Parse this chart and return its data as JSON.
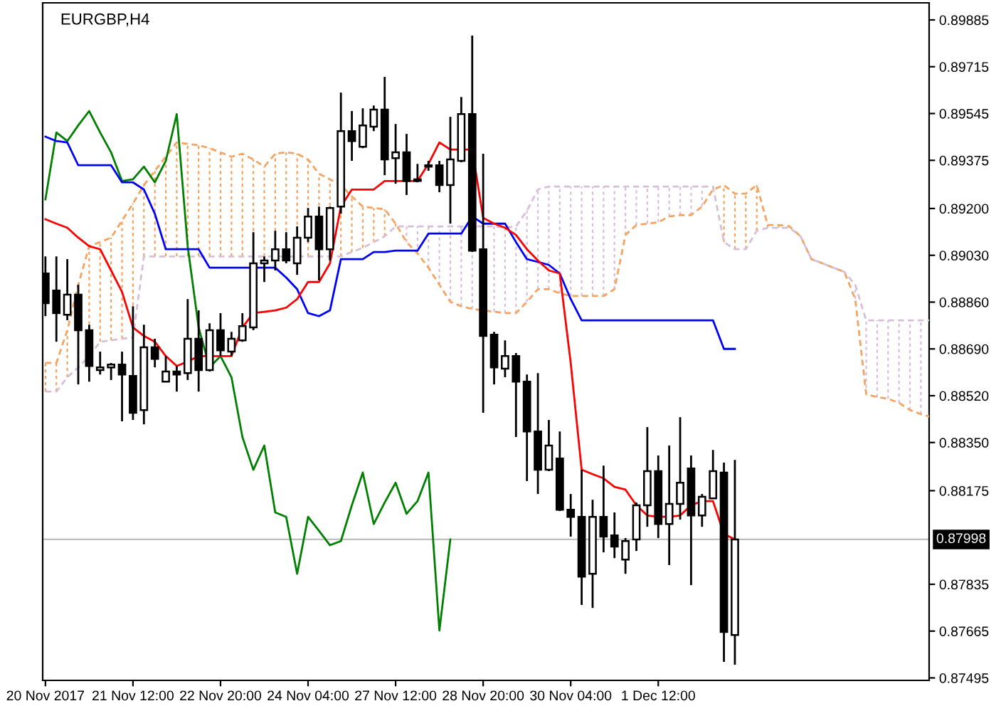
{
  "chart_data": {
    "type": "candlestick",
    "title": "EURGBP,H4",
    "categories": [
      "20 Nov 2017",
      null,
      null,
      null,
      null,
      null,
      null,
      null,
      "21 Nov 12:00",
      null,
      null,
      null,
      null,
      null,
      null,
      null,
      "22 Nov 20:00",
      null,
      null,
      null,
      null,
      null,
      null,
      null,
      "24 Nov 04:00",
      null,
      null,
      null,
      null,
      null,
      null,
      null,
      "27 Nov 12:00",
      null,
      null,
      null,
      null,
      null,
      null,
      null,
      "28 Nov 20:00",
      null,
      null,
      null,
      null,
      null,
      null,
      null,
      "30 Nov 04:00",
      null,
      null,
      null,
      null,
      null,
      null,
      null,
      "1 Dec 12:00",
      null,
      null,
      null,
      null,
      null,
      null,
      null,
      null,
      null,
      null,
      null,
      null,
      null,
      null,
      null,
      null,
      null,
      null,
      null,
      null,
      null,
      null,
      null,
      null,
      null
    ],
    "ohlc": [
      [
        0.88964,
        0.89026,
        0.88809,
        0.88856
      ],
      [
        0.88902,
        0.89026,
        0.88716,
        0.8882
      ],
      [
        0.88814,
        0.89016,
        0.88794,
        0.88887
      ],
      [
        0.88887,
        0.88923,
        0.88561,
        0.88758
      ],
      [
        0.88758,
        0.88778,
        0.88571,
        0.88628
      ],
      [
        0.88613,
        0.8868,
        0.88597,
        0.88623
      ],
      [
        0.88623,
        0.88639,
        0.88577,
        0.88633
      ],
      [
        0.88633,
        0.8868,
        0.88427,
        0.88597
      ],
      [
        0.88592,
        0.88845,
        0.88432,
        0.88458
      ],
      [
        0.88468,
        0.88778,
        0.88416,
        0.88696
      ],
      [
        0.88696,
        0.88727,
        0.88623,
        0.88654
      ],
      [
        0.88571,
        0.88664,
        0.88571,
        0.88608
      ],
      [
        0.88608,
        0.88628,
        0.88535,
        0.88597
      ],
      [
        0.88602,
        0.88871,
        0.88577,
        0.88727
      ],
      [
        0.88727,
        0.8883,
        0.88535,
        0.88613
      ],
      [
        0.88613,
        0.88783,
        0.88608,
        0.88758
      ],
      [
        0.88758,
        0.8882,
        0.88664,
        0.88685
      ],
      [
        0.8868,
        0.88752,
        0.88664,
        0.88727
      ],
      [
        0.88721,
        0.8882,
        0.88716,
        0.88773
      ],
      [
        0.88768,
        0.89114,
        0.88758,
        0.89001
      ],
      [
        0.89001,
        0.89026,
        0.88933,
        0.89011
      ],
      [
        0.89011,
        0.89119,
        0.88975,
        0.89052
      ],
      [
        0.89052,
        0.89114,
        0.89001,
        0.89011
      ],
      [
        0.89001,
        0.89135,
        0.88959,
        0.89094
      ],
      [
        0.89094,
        0.89202,
        0.89078,
        0.89171
      ],
      [
        0.89171,
        0.89207,
        0.88939,
        0.89052
      ],
      [
        0.89052,
        0.89207,
        0.89011,
        0.89202
      ],
      [
        0.89207,
        0.89621,
        0.89181,
        0.89481
      ],
      [
        0.89481,
        0.89554,
        0.89373,
        0.89445
      ],
      [
        0.89424,
        0.89564,
        0.89419,
        0.89502
      ],
      [
        0.89497,
        0.89574,
        0.89481,
        0.89559
      ],
      [
        0.89559,
        0.89678,
        0.89321,
        0.89378
      ],
      [
        0.89383,
        0.89507,
        0.8929,
        0.89404
      ],
      [
        0.89404,
        0.89471,
        0.89249,
        0.893
      ],
      [
        0.89306,
        0.89362,
        0.89295,
        0.893
      ],
      [
        0.89357,
        0.89373,
        0.89337,
        0.89352
      ],
      [
        0.89357,
        0.89373,
        0.89259,
        0.89285
      ],
      [
        0.89285,
        0.89533,
        0.89145,
        0.89378
      ],
      [
        0.89373,
        0.89605,
        0.89368,
        0.89543
      ],
      [
        0.89543,
        0.89828,
        0.89042,
        0.89047
      ],
      [
        0.89052,
        0.89399,
        0.88458,
        0.88737
      ],
      [
        0.88742,
        0.88752,
        0.88561,
        0.88623
      ],
      [
        0.88618,
        0.88721,
        0.88587,
        0.88664
      ],
      [
        0.88664,
        0.88675,
        0.8837,
        0.88571
      ],
      [
        0.88571,
        0.88597,
        0.8821,
        0.8839
      ],
      [
        0.8839,
        0.88602,
        0.88163,
        0.88251
      ],
      [
        0.88251,
        0.88432,
        0.88246,
        0.88339
      ],
      [
        0.88292,
        0.8839,
        0.88101,
        0.88106
      ],
      [
        0.88106,
        0.88163,
        0.88008,
        0.8808
      ],
      [
        0.8808,
        0.88251,
        0.8776,
        0.87863
      ],
      [
        0.87873,
        0.88142,
        0.87749,
        0.8808
      ],
      [
        0.8808,
        0.88266,
        0.87951,
        0.88008
      ],
      [
        0.88013,
        0.88096,
        0.8793,
        0.87972
      ],
      [
        0.87925,
        0.88003,
        0.87873,
        0.87992
      ],
      [
        0.87998,
        0.88132,
        0.87956,
        0.88122
      ],
      [
        0.88122,
        0.88406,
        0.88044,
        0.88246
      ],
      [
        0.88246,
        0.88303,
        0.88003,
        0.88054
      ],
      [
        0.88054,
        0.88339,
        0.87905,
        0.88127
      ],
      [
        0.88127,
        0.88442,
        0.8807,
        0.88204
      ],
      [
        0.88256,
        0.88303,
        0.87832,
        0.88085
      ],
      [
        0.88085,
        0.88163,
        0.88044,
        0.88153
      ],
      [
        0.88147,
        0.88323,
        0.88147,
        0.88246
      ],
      [
        0.88241,
        0.88277,
        0.87553,
        0.87662
      ],
      [
        0.87651,
        0.88287,
        0.87543,
        0.87998
      ],
      null,
      null,
      null,
      null,
      null,
      null,
      null,
      null,
      null,
      null,
      null,
      null,
      null,
      null,
      null,
      null,
      null,
      null
    ],
    "series": [
      {
        "type": "line",
        "color": "#f4a460",
        "line_style": "dashed",
        "values": [
          0.88639,
          0.88639,
          0.88758,
          0.88923,
          0.89063,
          0.89078,
          0.89094,
          0.89156,
          0.89218,
          0.89285,
          0.89337,
          0.89388,
          0.8944,
          0.89435,
          0.8943,
          0.89419,
          0.89404,
          0.89388,
          0.89399,
          0.89378,
          0.89352,
          0.89399,
          0.89404,
          0.89399,
          0.89378,
          0.89326,
          0.89306,
          0.89285,
          0.89244,
          0.89207,
          0.89202,
          0.89197,
          0.89145,
          0.89078,
          0.89037,
          0.88985,
          0.88923,
          0.88861,
          0.88845,
          0.88835,
          0.8883,
          0.88825,
          0.8882,
          0.8882,
          0.88861,
          0.88907,
          0.88907,
          0.88892,
          0.88882,
          0.88882,
          0.88882,
          0.88882,
          0.88907,
          0.89104,
          0.8914,
          0.89145,
          0.8915,
          0.89171,
          0.89176,
          0.89176,
          0.89207,
          0.89269,
          0.89285,
          0.89254,
          0.89254,
          0.89285,
          0.8914,
          0.8914,
          0.89135,
          0.89099,
          0.89016,
          0.89001,
          0.88985,
          0.8897,
          0.88871,
          0.88525,
          0.88515,
          0.88509,
          0.88494,
          0.88468,
          0.88453,
          0.88442
        ]
      },
      {
        "type": "line",
        "color": "#d8bfd8",
        "line_style": "dashed",
        "values": [
          0.88535,
          0.88535,
          0.88587,
          0.88623,
          0.88664,
          0.88716,
          0.88721,
          0.88727,
          0.88732,
          0.89026,
          0.89026,
          0.89026,
          0.89026,
          0.89026,
          0.89026,
          0.89026,
          0.89026,
          0.89026,
          0.89026,
          0.89026,
          0.89026,
          0.89026,
          0.89026,
          0.89026,
          0.89026,
          0.89026,
          0.89026,
          0.89026,
          0.89042,
          0.89057,
          0.89078,
          0.89099,
          0.89135,
          0.89135,
          0.89135,
          0.89135,
          0.89135,
          0.89135,
          0.89135,
          0.89135,
          0.89135,
          0.89135,
          0.8913,
          0.89135,
          0.89192,
          0.89269,
          0.8928,
          0.8928,
          0.8928,
          0.8928,
          0.8928,
          0.8928,
          0.8928,
          0.8928,
          0.8928,
          0.8928,
          0.8928,
          0.8928,
          0.8928,
          0.8928,
          0.8928,
          0.8928,
          0.89078,
          0.89052,
          0.89052,
          0.89119,
          0.8913,
          0.8913,
          0.8913,
          0.89099,
          0.89016,
          0.89001,
          0.88985,
          0.8897,
          0.88923,
          0.88794,
          0.88794,
          0.88794,
          0.88794,
          0.88794,
          0.88794,
          0.88794
        ]
      },
      {
        "type": "line",
        "color": "#008000",
        "line_style": "solid",
        "values": [
          0.89233,
          0.89476,
          0.89445,
          0.89502,
          0.89554,
          0.89476,
          0.89404,
          0.893,
          0.89306,
          0.89352,
          0.89295,
          0.89373,
          0.89543,
          0.89063,
          0.88768,
          0.88623,
          0.88664,
          0.88587,
          0.8837,
          0.88251,
          0.88339,
          0.88096,
          0.8808,
          0.87873,
          0.8808,
          0.88029,
          0.87977,
          0.87992,
          0.88122,
          0.88241,
          0.88054,
          0.88132,
          0.88204,
          0.88091,
          0.88137,
          0.88241,
          0.87667,
          0.87998,
          null,
          null,
          null,
          null,
          null,
          null,
          null,
          null,
          null,
          null,
          null,
          null,
          null,
          null,
          null,
          null,
          null,
          null,
          null,
          null,
          null,
          null,
          null,
          null,
          null,
          null,
          null,
          null,
          null,
          null,
          null,
          null,
          null,
          null,
          null,
          null,
          null,
          null,
          null,
          null,
          null,
          null,
          null,
          null
        ]
      },
      {
        "type": "line",
        "color": "#0000ff",
        "line_style": "solid",
        "values": [
          0.89461,
          0.89445,
          0.8944,
          0.89357,
          0.89357,
          0.89357,
          0.89357,
          0.89295,
          0.89295,
          0.89269,
          0.89181,
          0.89052,
          0.89052,
          0.89052,
          0.89052,
          0.88985,
          0.88985,
          0.88985,
          0.88985,
          0.88985,
          0.88985,
          0.88985,
          0.88949,
          0.88907,
          0.8882,
          0.88809,
          0.8883,
          0.89016,
          0.89016,
          0.89016,
          0.89042,
          0.89042,
          0.89047,
          0.89047,
          0.89047,
          0.89109,
          0.89109,
          0.89109,
          0.89109,
          0.89171,
          0.89145,
          0.89145,
          0.89145,
          0.89078,
          0.89016,
          0.89006,
          0.88995,
          0.88964,
          0.88871,
          0.88794,
          0.88794,
          0.88794,
          0.88794,
          0.88794,
          0.88794,
          0.88794,
          0.88794,
          0.88794,
          0.88794,
          0.88794,
          0.88794,
          0.88794,
          0.8869,
          0.8869,
          null,
          null,
          null,
          null,
          null,
          null,
          null,
          null,
          null,
          null,
          null,
          null,
          null,
          null,
          null,
          null,
          null,
          null
        ]
      },
      {
        "type": "line",
        "color": "#ff0000",
        "line_style": "solid",
        "values": [
          0.89161,
          0.89145,
          0.8913,
          0.89094,
          0.89063,
          0.89052,
          0.88975,
          0.88897,
          0.88768,
          0.88737,
          0.88716,
          0.88664,
          0.88628,
          0.88644,
          0.88664,
          0.88664,
          0.88664,
          0.88664,
          0.88768,
          0.8882,
          0.88825,
          0.8883,
          0.8884,
          0.88871,
          0.88933,
          0.88933,
          0.89001,
          0.89207,
          0.89269,
          0.89269,
          0.89269,
          0.893,
          0.893,
          0.893,
          0.893,
          0.89362,
          0.8944,
          0.89414,
          0.89414,
          0.89414,
          0.89166,
          0.89145,
          0.8913,
          0.89104,
          0.89052,
          0.89011,
          0.88975,
          0.88964,
          0.88639,
          0.88251,
          0.88235,
          0.8822,
          0.88189,
          0.88179,
          0.88122,
          0.88085,
          0.8808,
          0.8808,
          0.88085,
          0.88122,
          0.88137,
          0.88137,
          0.88018,
          0.87998,
          null,
          null,
          null,
          null,
          null,
          null,
          null,
          null,
          null,
          null,
          null,
          null,
          null,
          null,
          null,
          null,
          null,
          null
        ]
      }
    ],
    "ylim": [
      0.87486,
      0.89947
    ],
    "yticks": [
      0.89885,
      0.89715,
      0.89545,
      0.89375,
      {
        "value": 0.892,
        "label": "0.89200"
      },
      {
        "value": 0.8903,
        "label": "0.89030"
      },
      {
        "value": 0.8886,
        "label": "0.88860"
      },
      {
        "value": 0.8869,
        "label": "0.88690"
      },
      {
        "value": 0.8852,
        "label": "0.88520"
      },
      {
        "value": 0.8835,
        "label": "0.88350"
      },
      0.88175,
      0.87835,
      0.87665,
      0.87495
    ],
    "ref_lines": [
      {
        "axis": "y",
        "value": 0.87998,
        "label": "0.87998",
        "color": "#c0c0c0"
      }
    ]
  }
}
